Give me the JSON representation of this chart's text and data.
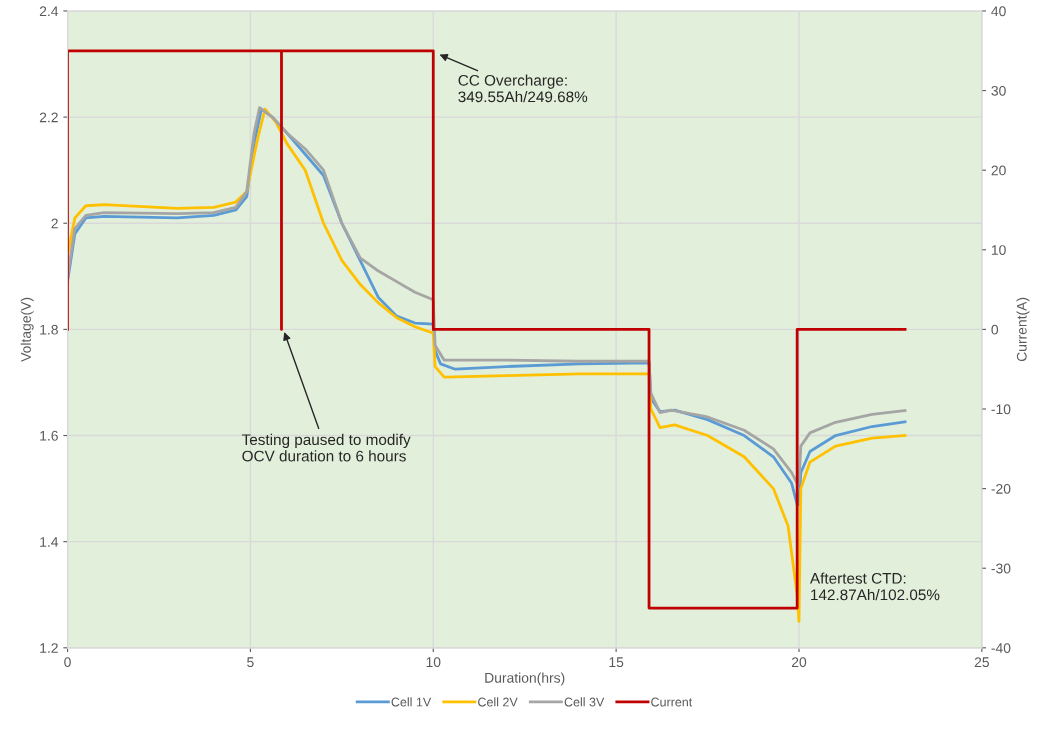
{
  "chart_data": {
    "type": "line",
    "xlabel": "Duration(hrs)",
    "ylabel": "Voltage(V)",
    "y2label": "Current(A)",
    "xlim": [
      0,
      25
    ],
    "xticks": [
      0,
      5,
      10,
      15,
      20,
      25
    ],
    "ylim": [
      1.2,
      2.4
    ],
    "yticks": [
      1.2,
      1.4,
      1.6,
      1.8,
      2,
      2.2,
      2.4
    ],
    "y2lim": [
      -40,
      40
    ],
    "y2ticks": [
      -40,
      -30,
      -20,
      -10,
      0,
      10,
      20,
      30,
      40
    ],
    "grid": true,
    "legend": "bottom",
    "marker": "none",
    "line_style": "solid",
    "series": [
      {
        "name": "Cell 1V",
        "color": "#5b9bd5",
        "x": [
          0,
          0.2,
          0.5,
          1,
          3,
          4,
          4.6,
          4.9,
          5.1,
          5.3,
          5.6,
          6,
          6.5,
          7,
          7.5,
          8,
          8.5,
          9,
          9.5,
          10,
          10.05,
          10.2,
          10.6,
          12,
          14,
          15.9,
          15.95,
          16.2,
          16.6,
          17.5,
          18.5,
          19.3,
          19.8,
          19.95,
          20,
          20.05,
          20.3,
          21,
          22,
          22.9
        ],
        "values": [
          1.89,
          1.98,
          2.01,
          2.013,
          2.01,
          2.015,
          2.025,
          2.05,
          2.15,
          2.215,
          2.2,
          2.17,
          2.13,
          2.09,
          2.0,
          1.93,
          1.86,
          1.825,
          1.812,
          1.81,
          1.76,
          1.735,
          1.725,
          1.73,
          1.735,
          1.737,
          1.67,
          1.645,
          1.648,
          1.63,
          1.6,
          1.56,
          1.51,
          1.47,
          1.47,
          1.53,
          1.57,
          1.6,
          1.617,
          1.626
        ]
      },
      {
        "name": "Cell 2V",
        "color": "#ffc000",
        "x": [
          0,
          0.2,
          0.5,
          1,
          3,
          4,
          4.6,
          4.9,
          5.2,
          5.4,
          5.7,
          6,
          6.5,
          7,
          7.5,
          8,
          8.5,
          9,
          9.5,
          10,
          10.05,
          10.3,
          12,
          14,
          15.9,
          15.95,
          16.2,
          16.6,
          17.5,
          18.5,
          19.3,
          19.7,
          19.95,
          20,
          20.05,
          20.3,
          21,
          22,
          22.9
        ],
        "values": [
          1.94,
          2.01,
          2.033,
          2.035,
          2.028,
          2.03,
          2.04,
          2.06,
          2.16,
          2.215,
          2.19,
          2.15,
          2.1,
          2.0,
          1.93,
          1.885,
          1.85,
          1.822,
          1.805,
          1.793,
          1.73,
          1.71,
          1.713,
          1.716,
          1.716,
          1.65,
          1.615,
          1.62,
          1.6,
          1.56,
          1.5,
          1.43,
          1.3,
          1.25,
          1.5,
          1.55,
          1.58,
          1.595,
          1.6
        ]
      },
      {
        "name": "Cell 3V",
        "color": "#a5a5a5",
        "x": [
          0,
          0.2,
          0.5,
          1,
          3,
          4,
          4.6,
          4.9,
          5.1,
          5.25,
          5.6,
          6,
          6.5,
          7,
          7.5,
          8,
          8.5,
          9,
          9.5,
          10,
          10.05,
          10.3,
          12,
          14,
          15.9,
          15.95,
          16.2,
          16.5,
          17.5,
          18.5,
          19.3,
          19.8,
          19.95,
          20,
          20.05,
          20.3,
          21,
          22,
          22.9
        ],
        "values": [
          1.9,
          1.99,
          2.015,
          2.02,
          2.018,
          2.02,
          2.03,
          2.06,
          2.17,
          2.218,
          2.2,
          2.17,
          2.14,
          2.1,
          2.0,
          1.935,
          1.91,
          1.89,
          1.87,
          1.856,
          1.77,
          1.742,
          1.742,
          1.74,
          1.74,
          1.68,
          1.643,
          1.648,
          1.635,
          1.61,
          1.575,
          1.53,
          1.51,
          1.51,
          1.58,
          1.605,
          1.625,
          1.64,
          1.647
        ]
      },
      {
        "name": "Current",
        "color": "#c00000",
        "axis": "y2",
        "x": [
          0,
          0,
          5.85,
          5.85,
          5.85,
          10,
          10,
          15.9,
          15.9,
          19.95,
          19.95,
          22.9
        ],
        "values": [
          0,
          35,
          35,
          0,
          35,
          35,
          0,
          0,
          -35,
          -35,
          0,
          0
        ]
      }
    ],
    "annotations": [
      {
        "text": "CC Overcharge:\n349.55Ah/249.68%",
        "x": 10.1,
        "y": 2.32
      },
      {
        "text": "Testing paused to modify\nOCV duration to 6 hours",
        "x": 5.9,
        "y": 1.8
      },
      "Aftertest CTD:\n142.87Ah/102.05%"
    ]
  }
}
